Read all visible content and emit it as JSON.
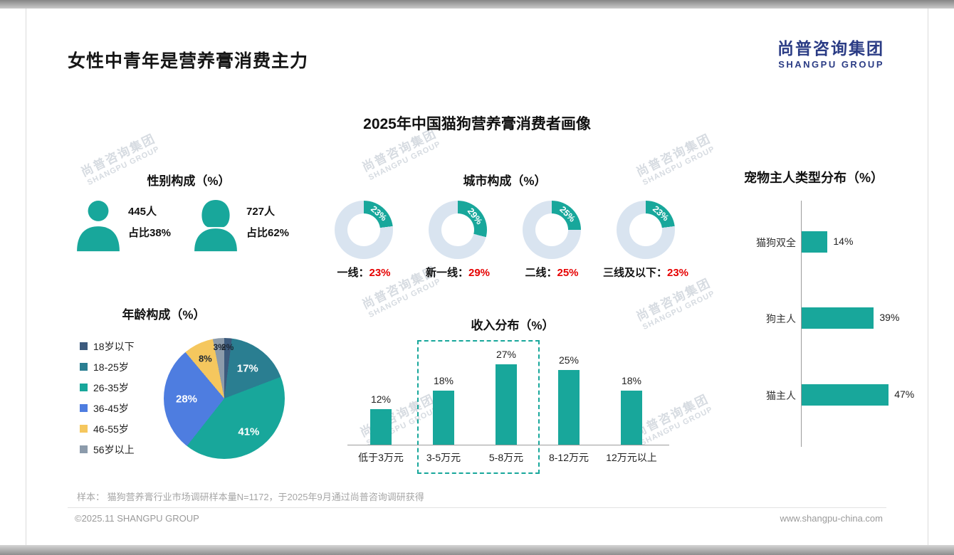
{
  "page": {
    "title": "女性中青年是营养膏消费主力",
    "logo_cn": "尚普咨询集团",
    "logo_en": "SHANGPU GROUP",
    "subtitle": "2025年中国猫狗营养膏消费者画像",
    "sample_note": "样本： 猫狗营养膏行业市场调研样本量N=1172，于2025年9月通过尚普咨询调研获得",
    "copyright": "©2025.11 SHANGPU GROUP",
    "website": "www.shangpu-china.com",
    "watermark_cn": "尚普咨询集团",
    "watermark_en": "SHANGPU GROUP"
  },
  "colors": {
    "accent": "#18A79B",
    "donut_rest": "#D9E4F0",
    "percent_red": "#E60000",
    "logo_navy": "#2B3C85"
  },
  "gender": {
    "title": "性别构成（%）",
    "male_count": "445人",
    "male_share": "占比38%",
    "female_count": "727人",
    "female_share": "占比62%"
  },
  "chart_data": [
    {
      "id": "city",
      "type": "pie",
      "variant": "donut",
      "title": "城市构成（%）",
      "unit": "%",
      "items": [
        {
          "label": "一线",
          "value": 23
        },
        {
          "label": "新一线",
          "value": 29
        },
        {
          "label": "二线",
          "value": 25
        },
        {
          "label": "三线及以下",
          "value": 23
        }
      ]
    },
    {
      "id": "age",
      "type": "pie",
      "title": "年龄构成（%）",
      "unit": "%",
      "items": [
        {
          "label": "18岁以下",
          "value": 2,
          "color": "#3C5A7D"
        },
        {
          "label": "18-25岁",
          "value": 17,
          "color": "#2A7E91"
        },
        {
          "label": "26-35岁",
          "value": 41,
          "color": "#18A79B"
        },
        {
          "label": "36-45岁",
          "value": 28,
          "color": "#4E7DE0"
        },
        {
          "label": "46-55岁",
          "value": 8,
          "color": "#F5C75E"
        },
        {
          "label": "56岁以上",
          "value": 3,
          "color": "#8C9BAB"
        }
      ]
    },
    {
      "id": "income",
      "type": "bar",
      "title": "收入分布（%）",
      "unit": "%",
      "categories": [
        "低于3万元",
        "3-5万元",
        "5-8万元",
        "8-12万元",
        "12万元以上"
      ],
      "values": [
        12,
        18,
        27,
        25,
        18
      ],
      "highlight": {
        "from": "3-5万元",
        "to": "5-8万元"
      },
      "ylim": [
        0,
        30
      ]
    },
    {
      "id": "owner",
      "type": "bar",
      "orientation": "horizontal",
      "title": "宠物主人类型分布（%）",
      "unit": "%",
      "categories": [
        "猫狗双全",
        "狗主人",
        "猫主人"
      ],
      "values": [
        14,
        39,
        47
      ]
    }
  ]
}
